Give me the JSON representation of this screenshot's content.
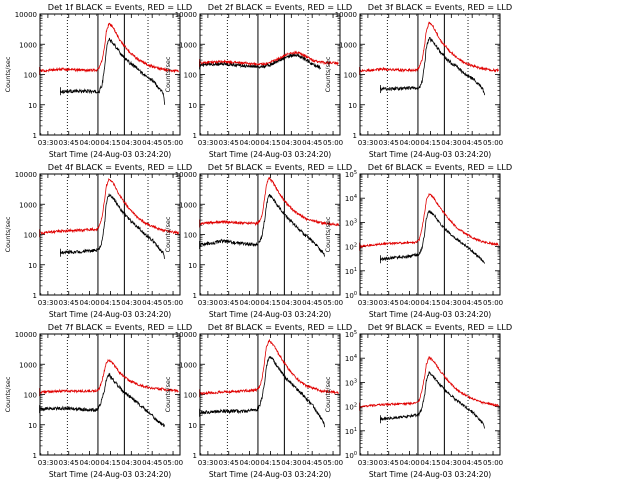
{
  "figure": {
    "xtick_labels": [
      "03:30",
      "03:45",
      "04:00",
      "04:15",
      "04:30",
      "04:45",
      "05:00"
    ],
    "colors": {
      "events": "#000000",
      "lld": "#e00000",
      "axes": "#000000"
    }
  },
  "chart_data": [
    {
      "type": "line",
      "title": "Det 1f BLACK = Events, RED = LLD",
      "xlabel": "Start Time (24-Aug-03 03:24:20)",
      "ylabel": "Counts/sec",
      "ylog": true,
      "ylim": [
        1,
        10000
      ],
      "ytick_style": "plain",
      "xlim": [
        "03:24:20",
        "05:05"
      ],
      "dotted_vlines": [
        "03:44",
        "04:42"
      ],
      "solid_vlines": [
        "04:06",
        "04:25"
      ],
      "series": [
        {
          "key": "events",
          "x": [
            "03:39",
            "04:00",
            "04:05",
            "04:07",
            "04:09",
            "04:11",
            "04:12",
            "04:14",
            "04:17",
            "04:22",
            "04:28",
            "04:34",
            "04:40",
            "04:46",
            "04:50",
            "04:53",
            "04:54"
          ],
          "y": [
            28,
            28,
            26,
            28,
            45,
            200,
            700,
            1500,
            1100,
            520,
            260,
            160,
            90,
            60,
            35,
            25,
            10
          ]
        },
        {
          "key": "lld",
          "x": [
            "03:24",
            "03:40",
            "03:55",
            "04:05",
            "04:07",
            "04:09",
            "04:11",
            "04:12",
            "04:14",
            "04:17",
            "04:22",
            "04:28",
            "04:34",
            "04:40",
            "04:46",
            "04:52",
            "05:00",
            "05:04"
          ],
          "y": [
            130,
            150,
            140,
            140,
            170,
            300,
            1000,
            2500,
            5000,
            3500,
            1300,
            600,
            330,
            230,
            180,
            150,
            135,
            130
          ]
        }
      ]
    },
    {
      "type": "line",
      "title": "Det 2f BLACK = Events, RED = LLD",
      "xlabel": "Start Time (24-Aug-03 03:24:20)",
      "ylabel": "Counts/sec",
      "ylog": true,
      "ylim": [
        1,
        10000
      ],
      "ytick_style": "plain",
      "xlim": [
        "03:24:20",
        "05:05"
      ],
      "dotted_vlines": [
        "03:44",
        "04:42"
      ],
      "solid_vlines": [
        "04:06",
        "04:25"
      ],
      "series": [
        {
          "key": "events",
          "x": [
            "03:24",
            "03:40",
            "03:55",
            "04:05",
            "04:12",
            "04:20",
            "04:28",
            "04:34",
            "04:40",
            "04:46",
            "04:50",
            "04:51"
          ],
          "y": [
            200,
            230,
            200,
            180,
            190,
            270,
            420,
            440,
            330,
            200,
            180,
            140
          ]
        },
        {
          "key": "lld",
          "x": [
            "03:24",
            "03:40",
            "03:55",
            "04:05",
            "04:12",
            "04:20",
            "04:28",
            "04:34",
            "04:40",
            "04:46",
            "04:52",
            "05:00",
            "05:04"
          ],
          "y": [
            240,
            270,
            240,
            215,
            230,
            320,
            500,
            540,
            420,
            280,
            250,
            240,
            230
          ]
        }
      ]
    },
    {
      "type": "line",
      "title": "Det 3f BLACK = Events, RED = LLD",
      "xlabel": "Start Time (24-Aug-03 03:24:20)",
      "ylabel": "Counts/sec",
      "ylog": true,
      "ylim": [
        1,
        10000
      ],
      "ytick_style": "plain",
      "xlim": [
        "03:24:20",
        "05:05"
      ],
      "dotted_vlines": [
        "03:44",
        "04:42"
      ],
      "solid_vlines": [
        "04:06",
        "04:25"
      ],
      "series": [
        {
          "key": "events",
          "x": [
            "03:39",
            "04:00",
            "04:05",
            "04:07",
            "04:09",
            "04:11",
            "04:12",
            "04:14",
            "04:17",
            "04:22",
            "04:28",
            "04:34",
            "04:40",
            "04:46",
            "04:50",
            "04:53",
            "04:54"
          ],
          "y": [
            33,
            35,
            33,
            35,
            60,
            250,
            800,
            1600,
            1200,
            560,
            280,
            180,
            100,
            70,
            45,
            30,
            22
          ]
        },
        {
          "key": "lld",
          "x": [
            "03:24",
            "03:40",
            "03:55",
            "04:05",
            "04:07",
            "04:09",
            "04:11",
            "04:12",
            "04:14",
            "04:17",
            "04:22",
            "04:28",
            "04:34",
            "04:40",
            "04:46",
            "04:52",
            "05:00",
            "05:04"
          ],
          "y": [
            130,
            150,
            140,
            140,
            170,
            320,
            1100,
            2700,
            5200,
            3700,
            1400,
            650,
            350,
            240,
            190,
            155,
            140,
            135
          ]
        }
      ]
    },
    {
      "type": "line",
      "title": "Det 4f BLACK = Events, RED = LLD",
      "xlabel": "Start Time (24-Aug-03 03:24:20)",
      "ylabel": "Counts/sec",
      "ylog": true,
      "ylim": [
        1,
        10000
      ],
      "ytick_style": "plain",
      "xlim": [
        "03:24:20",
        "05:05"
      ],
      "dotted_vlines": [
        "03:44",
        "04:42"
      ],
      "solid_vlines": [
        "04:06",
        "04:25"
      ],
      "series": [
        {
          "key": "events",
          "x": [
            "03:39",
            "04:00",
            "04:05",
            "04:07",
            "04:09",
            "04:11",
            "04:12",
            "04:14",
            "04:17",
            "04:22",
            "04:28",
            "04:34",
            "04:40",
            "04:46",
            "04:50",
            "04:53",
            "04:54"
          ],
          "y": [
            25,
            28,
            30,
            32,
            60,
            300,
            1100,
            2200,
            1600,
            700,
            330,
            190,
            100,
            60,
            35,
            25,
            15
          ]
        },
        {
          "key": "lld",
          "x": [
            "03:24",
            "03:40",
            "03:55",
            "04:05",
            "04:07",
            "04:09",
            "04:11",
            "04:12",
            "04:14",
            "04:17",
            "04:22",
            "04:28",
            "04:34",
            "04:40",
            "04:46",
            "04:52",
            "05:00",
            "05:04"
          ],
          "y": [
            110,
            130,
            140,
            150,
            190,
            400,
            1600,
            4000,
            7000,
            5000,
            1800,
            750,
            380,
            240,
            180,
            140,
            120,
            110
          ]
        }
      ]
    },
    {
      "type": "line",
      "title": "Det 5f BLACK = Events, RED = LLD",
      "xlabel": "Start Time (24-Aug-03 03:24:20)",
      "ylabel": "Counts/sec",
      "ylog": true,
      "ylim": [
        1,
        10000
      ],
      "ytick_style": "plain",
      "xlim": [
        "03:24:20",
        "05:05"
      ],
      "dotted_vlines": [
        "03:44",
        "04:42"
      ],
      "solid_vlines": [
        "04:06",
        "04:25"
      ],
      "series": [
        {
          "key": "events",
          "x": [
            "03:24",
            "03:40",
            "03:55",
            "04:05",
            "04:07",
            "04:09",
            "04:11",
            "04:12",
            "04:14",
            "04:17",
            "04:22",
            "04:28",
            "04:34",
            "04:40",
            "04:46",
            "04:50",
            "04:53",
            "04:54"
          ],
          "y": [
            45,
            60,
            50,
            45,
            55,
            90,
            350,
            900,
            2000,
            1500,
            700,
            320,
            180,
            95,
            55,
            35,
            25,
            20
          ]
        },
        {
          "key": "lld",
          "x": [
            "03:24",
            "03:40",
            "03:55",
            "04:05",
            "04:07",
            "04:09",
            "04:11",
            "04:12",
            "04:14",
            "04:17",
            "04:22",
            "04:28",
            "04:34",
            "04:40",
            "04:46",
            "04:52",
            "05:00",
            "05:04"
          ],
          "y": [
            230,
            260,
            240,
            230,
            260,
            450,
            1800,
            4200,
            7500,
            5200,
            2000,
            900,
            500,
            340,
            280,
            240,
            220,
            210
          ]
        }
      ]
    },
    {
      "type": "line",
      "title": "Det 6f BLACK = Events, RED = LLD",
      "xlabel": "Start Time (24-Aug-03 03:24:20)",
      "ylabel": "Counts/sec",
      "ylog": true,
      "ylim": [
        1,
        100000
      ],
      "ytick_style": "power",
      "xlim": [
        "03:24:20",
        "05:05"
      ],
      "dotted_vlines": [
        "03:44",
        "04:42"
      ],
      "solid_vlines": [
        "04:06",
        "04:25"
      ],
      "series": [
        {
          "key": "events",
          "x": [
            "03:39",
            "04:00",
            "04:05",
            "04:07",
            "04:09",
            "04:11",
            "04:12",
            "04:14",
            "04:17",
            "04:22",
            "04:28",
            "04:34",
            "04:40",
            "04:46",
            "04:50",
            "04:53",
            "04:54"
          ],
          "y": [
            30,
            40,
            45,
            50,
            90,
            400,
            1500,
            3000,
            2200,
            900,
            380,
            200,
            110,
            60,
            35,
            25,
            20
          ]
        },
        {
          "key": "lld",
          "x": [
            "03:24",
            "03:40",
            "03:55",
            "04:05",
            "04:07",
            "04:09",
            "04:11",
            "04:12",
            "04:14",
            "04:17",
            "04:22",
            "04:28",
            "04:34",
            "04:40",
            "04:46",
            "04:52",
            "05:00",
            "05:04"
          ],
          "y": [
            100,
            130,
            140,
            150,
            200,
            600,
            3000,
            8000,
            15000,
            11000,
            4000,
            1400,
            600,
            350,
            220,
            160,
            130,
            120
          ]
        }
      ]
    },
    {
      "type": "line",
      "title": "Det 7f BLACK = Events, RED = LLD",
      "xlabel": "Start Time (24-Aug-03 03:24:20)",
      "ylabel": "Counts/sec",
      "ylog": true,
      "ylim": [
        1,
        10000
      ],
      "ytick_style": "plain",
      "xlim": [
        "03:24:20",
        "05:05"
      ],
      "dotted_vlines": [
        "03:44",
        "04:42"
      ],
      "solid_vlines": [
        "04:06",
        "04:25"
      ],
      "series": [
        {
          "key": "events",
          "x": [
            "03:24",
            "03:40",
            "03:55",
            "04:05",
            "04:07",
            "04:09",
            "04:11",
            "04:12",
            "04:14",
            "04:17",
            "04:22",
            "04:28",
            "04:34",
            "04:40",
            "04:46",
            "04:50",
            "04:53",
            "04:54"
          ],
          "y": [
            33,
            35,
            32,
            30,
            40,
            70,
            160,
            300,
            450,
            300,
            160,
            90,
            55,
            32,
            18,
            12,
            10,
            9
          ]
        },
        {
          "key": "lld",
          "x": [
            "03:24",
            "03:40",
            "03:55",
            "04:05",
            "04:07",
            "04:09",
            "04:11",
            "04:12",
            "04:14",
            "04:17",
            "04:22",
            "04:28",
            "04:34",
            "04:40",
            "04:46",
            "04:52",
            "05:00",
            "05:04"
          ],
          "y": [
            120,
            130,
            130,
            130,
            160,
            300,
            700,
            1100,
            1400,
            1000,
            500,
            300,
            220,
            180,
            160,
            150,
            135,
            130
          ]
        }
      ]
    },
    {
      "type": "line",
      "title": "Det 8f BLACK = Events, RED = LLD",
      "xlabel": "Start Time (24-Aug-03 03:24:20)",
      "ylabel": "Counts/sec",
      "ylog": true,
      "ylim": [
        1,
        10000
      ],
      "ytick_style": "plain",
      "xlim": [
        "03:24:20",
        "05:05"
      ],
      "dotted_vlines": [
        "03:44",
        "04:42"
      ],
      "solid_vlines": [
        "04:06",
        "04:25"
      ],
      "series": [
        {
          "key": "events",
          "x": [
            "03:24",
            "03:40",
            "03:55",
            "04:05",
            "04:07",
            "04:09",
            "04:11",
            "04:12",
            "04:14",
            "04:17",
            "04:22",
            "04:28",
            "04:34",
            "04:40",
            "04:46",
            "04:50",
            "04:53",
            "04:54"
          ],
          "y": [
            25,
            28,
            28,
            30,
            40,
            80,
            300,
            800,
            1800,
            1400,
            600,
            280,
            150,
            80,
            40,
            20,
            12,
            9
          ]
        },
        {
          "key": "lld",
          "x": [
            "03:24",
            "03:40",
            "03:55",
            "04:05",
            "04:07",
            "04:09",
            "04:11",
            "04:12",
            "04:14",
            "04:17",
            "04:22",
            "04:28",
            "04:34",
            "04:40",
            "04:46",
            "04:52",
            "05:00",
            "05:04"
          ],
          "y": [
            110,
            120,
            130,
            140,
            170,
            350,
            1500,
            3500,
            6000,
            4500,
            1800,
            700,
            320,
            200,
            160,
            130,
            120,
            115
          ]
        }
      ]
    },
    {
      "type": "line",
      "title": "Det 9f BLACK = Events, RED = LLD",
      "xlabel": "Start Time (24-Aug-03 03:24:20)",
      "ylabel": "Counts/sec",
      "ylog": true,
      "ylim": [
        1,
        100000
      ],
      "ytick_style": "power",
      "xlim": [
        "03:24:20",
        "05:05"
      ],
      "dotted_vlines": [
        "03:44",
        "04:42"
      ],
      "solid_vlines": [
        "04:06",
        "04:25"
      ],
      "series": [
        {
          "key": "events",
          "x": [
            "03:39",
            "04:00",
            "04:05",
            "04:07",
            "04:09",
            "04:11",
            "04:12",
            "04:14",
            "04:17",
            "04:22",
            "04:28",
            "04:34",
            "04:40",
            "04:46",
            "04:50",
            "04:53",
            "04:54"
          ],
          "y": [
            30,
            40,
            45,
            50,
            90,
            350,
            1200,
            2500,
            1800,
            800,
            350,
            180,
            100,
            55,
            30,
            20,
            12
          ]
        },
        {
          "key": "lld",
          "x": [
            "03:24",
            "03:40",
            "03:55",
            "04:05",
            "04:07",
            "04:09",
            "04:11",
            "04:12",
            "04:14",
            "04:17",
            "04:22",
            "04:28",
            "04:34",
            "04:40",
            "04:46",
            "04:52",
            "05:00",
            "05:04"
          ],
          "y": [
            100,
            120,
            130,
            140,
            180,
            500,
            2000,
            5500,
            11000,
            8000,
            3000,
            1100,
            500,
            300,
            200,
            150,
            120,
            110
          ]
        }
      ]
    }
  ]
}
